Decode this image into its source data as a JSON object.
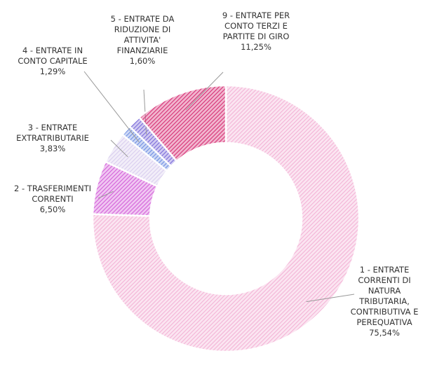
{
  "chart_data": {
    "type": "donut",
    "categories": [
      "1 - ENTRATE CORRENTI DI NATURA TRIBUTARIA, CONTRIBUTIVA E PEREQUATIVA",
      "2 - TRASFERIMENTI CORRENTI",
      "3 - ENTRATE EXTRATRIBUTARIE",
      "4 - ENTRATE IN CONTO CAPITALE",
      "5 - ENTRATE DA RIDUZIONE DI ATTIVITA' FINANZIARIE",
      "9 - ENTRATE PER CONTO TERZI E PARTITE DI GIRO"
    ],
    "values": [
      75.54,
      6.5,
      3.83,
      1.29,
      1.6,
      11.25
    ],
    "value_labels": [
      "75,54%",
      "6,50%",
      "3,83%",
      "1,29%",
      "1,60%",
      "11,25%"
    ],
    "colors": [
      "#f3b3d6",
      "#d35fd9",
      "#d9cdee",
      "#6f8fe2",
      "#7b6bd9",
      "#d62f74"
    ]
  }
}
